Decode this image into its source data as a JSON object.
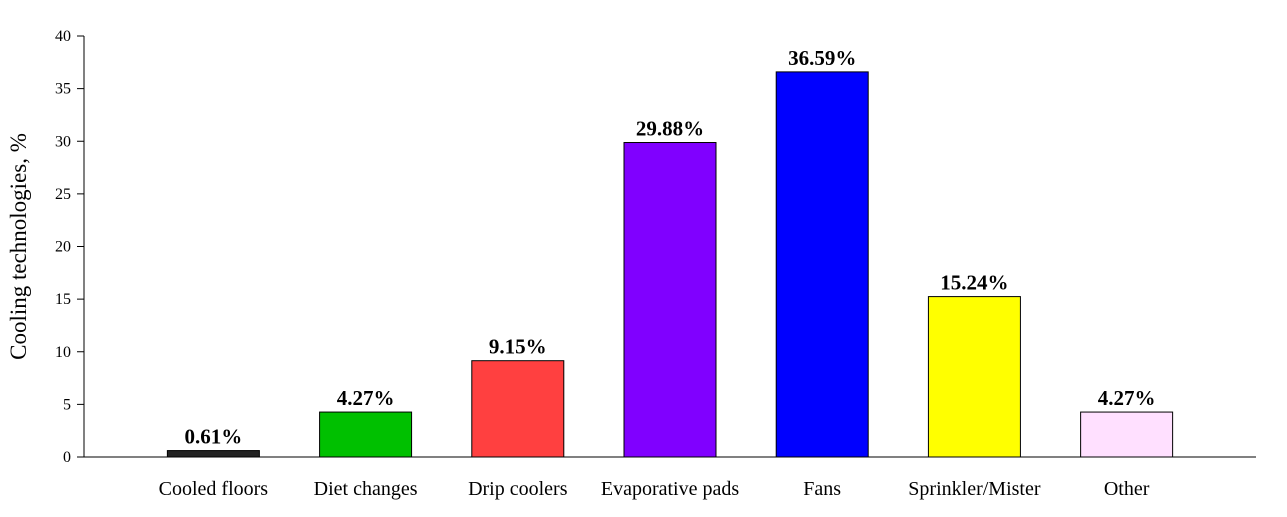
{
  "chart_data": {
    "type": "bar",
    "title": "",
    "xlabel": "",
    "ylabel": "Cooling technologies, %",
    "ylim": [
      0,
      40
    ],
    "yticks": [
      0,
      5,
      10,
      15,
      20,
      25,
      30,
      35,
      40
    ],
    "grid": false,
    "categories": [
      "Cooled floors",
      "Diet changes",
      "Drip coolers",
      "Evaporative pads",
      "Fans",
      "Sprinkler/Mister",
      "Other"
    ],
    "values": [
      0.61,
      4.27,
      9.15,
      29.88,
      36.59,
      15.24,
      4.27
    ],
    "data_labels": [
      "0.61%",
      "4.27%",
      "9.15%",
      "29.88%",
      "36.59%",
      "15.24%",
      "4.27%"
    ],
    "colors": [
      "#222222",
      "#00c000",
      "#ff4040",
      "#8000ff",
      "#0000ff",
      "#ffff00",
      "#ffe0ff"
    ]
  }
}
